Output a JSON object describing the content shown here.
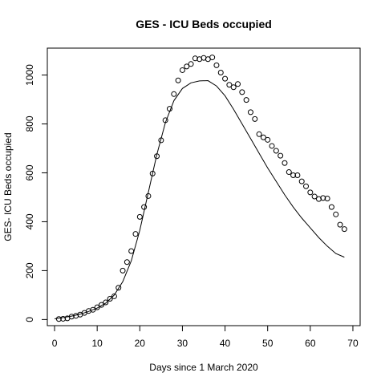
{
  "chart_data": {
    "type": "scatter",
    "title": "GES - ICU Beds occupied",
    "xlabel": "Days since 1 March 2020",
    "ylabel": "GES- ICU Beds occupied",
    "xlim": [
      -1.7,
      71.7
    ],
    "ylim": [
      -25,
      1110
    ],
    "x_ticks": [
      0,
      10,
      20,
      30,
      40,
      50,
      60,
      70
    ],
    "y_ticks": [
      0,
      200,
      400,
      600,
      800,
      1000
    ],
    "grid": false,
    "legend": "none",
    "series": [
      {
        "kind": "points",
        "marker": "open-circle",
        "x": [
          1,
          2,
          3,
          4,
          5,
          6,
          7,
          8,
          9,
          10,
          11,
          12,
          13,
          14,
          15,
          16,
          17,
          18,
          19,
          20,
          21,
          22,
          23,
          24,
          25,
          26,
          27,
          28,
          29,
          30,
          31,
          32,
          33,
          34,
          35,
          36,
          37,
          38,
          39,
          40,
          41,
          42,
          43,
          44,
          45,
          46,
          47,
          48,
          49,
          50,
          51,
          52,
          53,
          54,
          55,
          56,
          57,
          58,
          59,
          60,
          61,
          62,
          63,
          64,
          65,
          66,
          67,
          68
        ],
        "y": [
          2,
          3,
          5,
          12,
          15,
          20,
          27,
          35,
          40,
          50,
          60,
          70,
          85,
          95,
          130,
          200,
          235,
          280,
          350,
          420,
          460,
          505,
          597,
          668,
          733,
          815,
          862,
          922,
          978,
          1020,
          1035,
          1045,
          1068,
          1065,
          1070,
          1065,
          1072,
          1040,
          1010,
          985,
          960,
          950,
          963,
          930,
          898,
          848,
          820,
          758,
          745,
          735,
          710,
          690,
          670,
          640,
          603,
          590,
          590,
          565,
          545,
          520,
          503,
          493,
          497,
          495,
          460,
          430,
          388,
          370
        ]
      },
      {
        "kind": "line",
        "x": [
          0,
          2,
          4,
          6,
          8,
          10,
          12,
          14,
          16,
          18,
          20,
          22,
          24,
          26,
          28,
          30,
          32,
          34,
          36,
          38,
          40,
          42,
          44,
          46,
          48,
          50,
          52,
          54,
          56,
          58,
          60,
          62,
          64,
          66,
          68
        ],
        "y": [
          3,
          8,
          14,
          22,
          33,
          47,
          67,
          100,
          155,
          240,
          365,
          520,
          675,
          805,
          895,
          945,
          968,
          976,
          977,
          955,
          915,
          860,
          800,
          740,
          680,
          620,
          565,
          510,
          460,
          415,
          375,
          335,
          300,
          270,
          255
        ]
      }
    ]
  }
}
